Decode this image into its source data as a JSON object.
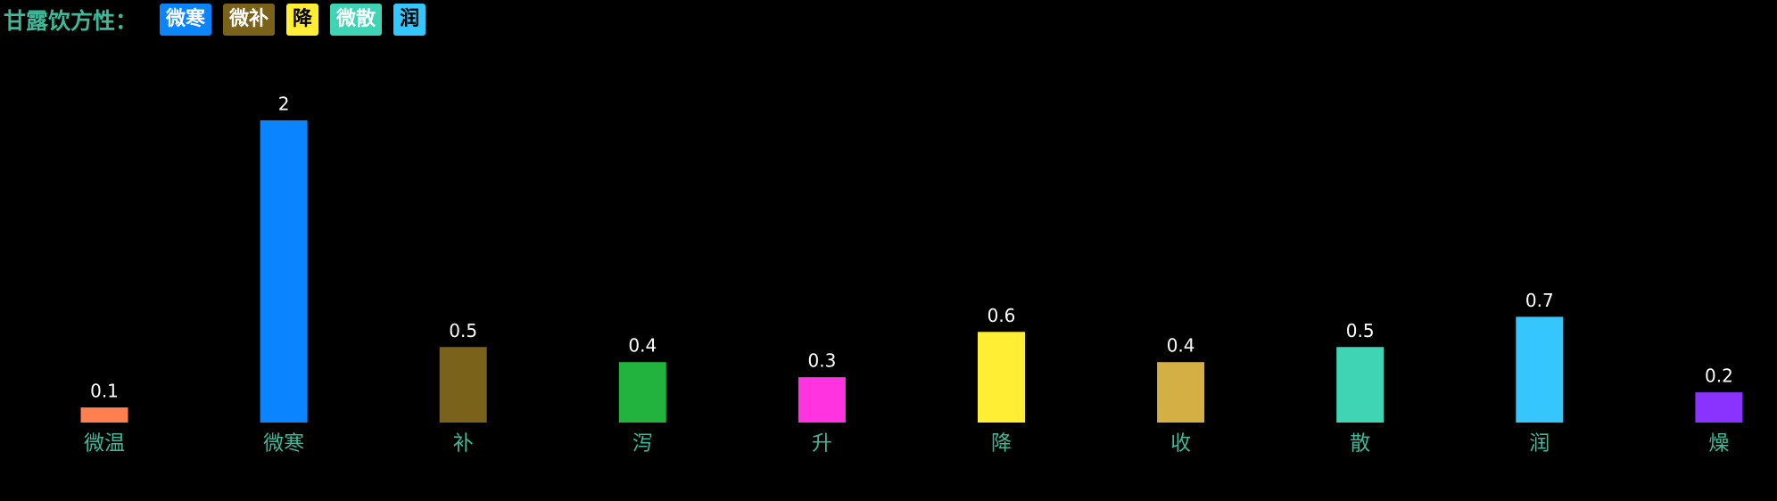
{
  "header": {
    "title": "甘露饮方性：",
    "tags": [
      {
        "label": "微寒",
        "color": "#0a84ff",
        "text_color": "#ffffff"
      },
      {
        "label": "微补",
        "color": "#7a621b",
        "text_color": "#ffffff"
      },
      {
        "label": "降",
        "color": "#ffee33",
        "text_color": "#000000"
      },
      {
        "label": "微散",
        "color": "#3fd4b4",
        "text_color": "#ffffff"
      },
      {
        "label": "润",
        "color": "#34c6fc",
        "text_color": "#000000"
      }
    ]
  },
  "chart_data": {
    "type": "bar",
    "categories": [
      "微温",
      "微寒",
      "补",
      "泻",
      "升",
      "降",
      "收",
      "散",
      "润",
      "燥"
    ],
    "values": [
      0.1,
      2,
      0.5,
      0.4,
      0.3,
      0.6,
      0.4,
      0.5,
      0.7,
      0.2
    ],
    "colors": [
      "#ff7f50",
      "#0a84ff",
      "#7a621b",
      "#22b23e",
      "#ff33e0",
      "#ffee33",
      "#d4b044",
      "#3fd4b4",
      "#34c6fc",
      "#8a33ff"
    ]
  }
}
